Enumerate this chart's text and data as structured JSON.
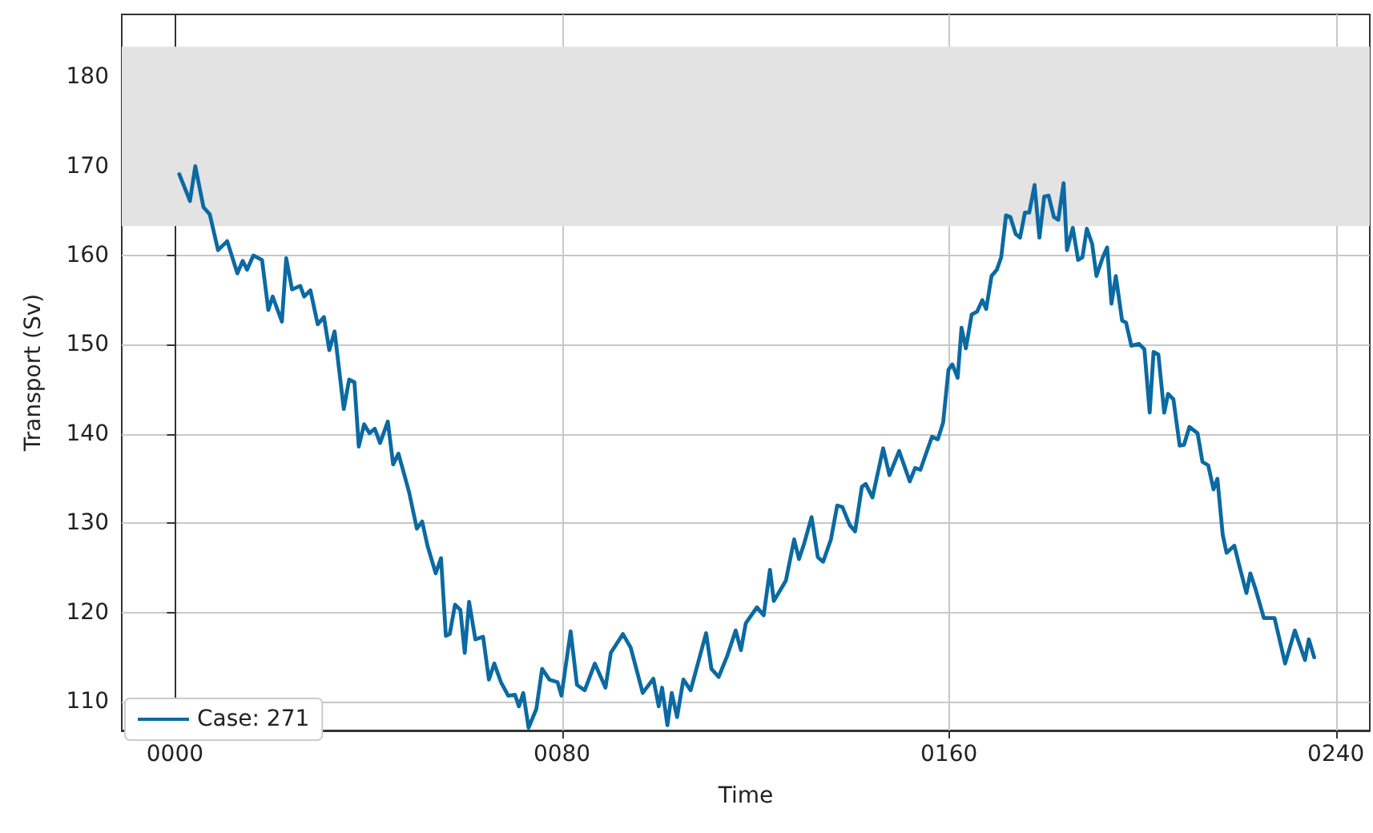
{
  "chart_data": {
    "type": "line",
    "xlabel": "Time",
    "ylabel": "Transport (Sv)",
    "xlim": [
      -11,
      247
    ],
    "ylim": [
      106.8,
      187
    ],
    "xticks": [
      {
        "value": 0,
        "label": "0000"
      },
      {
        "value": 80,
        "label": "0080"
      },
      {
        "value": 160,
        "label": "0160"
      },
      {
        "value": 240,
        "label": "0240"
      }
    ],
    "yticks": [
      110,
      120,
      130,
      140,
      150,
      160,
      170,
      180
    ],
    "grid": true,
    "legend": "bottom left",
    "line_style": "solid",
    "marker": "none",
    "bands": [
      {
        "axis": "y",
        "from": 163.3,
        "to": 183.4,
        "color": "#e3e3e3"
      }
    ],
    "series": [
      {
        "name": "Case: 271",
        "color": "#0b6aa2",
        "x": [
          0.9,
          3.1,
          4.2,
          5.9,
          7.2,
          8.9,
          10.8,
          12.9,
          14,
          14.9,
          16.2,
          18,
          19.3,
          20.2,
          22.1,
          23,
          24.2,
          25.9,
          26.7,
          28,
          29.5,
          30.8,
          31.9,
          33,
          34.9,
          36,
          37.1,
          38,
          39.1,
          40.2,
          41.3,
          42.4,
          44,
          45.1,
          46.2,
          48.4,
          50,
          51.1,
          52.2,
          53.9,
          55,
          56,
          56.8,
          57.9,
          59,
          59.9,
          60.8,
          62.1,
          63.7,
          64.9,
          66,
          67.4,
          68.9,
          70.3,
          71.1,
          72,
          73.1,
          74.7,
          75.9,
          77.4,
          79.1,
          79.9,
          81.8,
          83.1,
          84.7,
          86.8,
          89,
          90.1,
          92.6,
          94.2,
          96.7,
          98.9,
          100,
          100.7,
          101.8,
          102.7,
          103.8,
          105.1,
          106.6,
          109.8,
          110.9,
          112.4,
          114.2,
          115.9,
          117,
          118,
          120.3,
          121.7,
          123,
          123.8,
          126.3,
          128,
          129,
          130.1,
          131.6,
          132.9,
          134,
          135.6,
          136.9,
          138,
          139.5,
          140.6,
          142,
          142.8,
          144.2,
          146.4,
          147.7,
          149.7,
          151.9,
          153,
          154.1,
          155.2,
          156.5,
          157.7,
          158.8,
          159.9,
          160.7,
          161.8,
          162.6,
          163.5,
          164.7,
          165.8,
          166.9,
          167.7,
          168.8,
          169.9,
          170.8,
          171.8,
          172.7,
          173.8,
          174.7,
          175.7,
          176.6,
          177.7,
          178.7,
          179.7,
          180.6,
          181.7,
          182.6,
          183.7,
          184.4,
          185.6,
          186.7,
          187.6,
          188.5,
          189.6,
          190.5,
          191.8,
          192.7,
          193.6,
          194.5,
          195.8,
          196.6,
          197.7,
          199.3,
          200.4,
          201.5,
          202.3,
          203.3,
          204.5,
          205.3,
          206.4,
          207.7,
          208.6,
          209.7,
          211.4,
          212.4,
          213.6,
          214.7,
          215.5,
          216.6,
          217.4,
          219,
          220.1,
          221.5,
          222.3,
          223.4,
          225.1,
          227.3,
          229.5,
          231.5,
          233.6,
          234.4,
          235.5
        ],
        "values": [
          169.1,
          166.1,
          170,
          165.4,
          164.6,
          160.6,
          161.6,
          158,
          159.4,
          158.4,
          160,
          159.5,
          153.9,
          155.4,
          152.6,
          159.7,
          156.2,
          156.6,
          155.4,
          156.1,
          152.3,
          153.1,
          149.4,
          151.5,
          142.8,
          146.1,
          145.8,
          138.6,
          141.1,
          140.1,
          140.6,
          139,
          141.4,
          136.6,
          137.8,
          133.5,
          129.4,
          130.2,
          127.5,
          124.4,
          126.1,
          117.4,
          117.6,
          120.9,
          120.3,
          115.5,
          121.2,
          117,
          117.3,
          112.5,
          114.3,
          112.2,
          110.7,
          110.8,
          109.5,
          111,
          107.1,
          109.2,
          113.7,
          112.5,
          112.2,
          110.7,
          117.9,
          111.9,
          111.3,
          114.3,
          111.6,
          115.5,
          117.6,
          116.1,
          111,
          112.6,
          109.5,
          111.6,
          107.4,
          111,
          108.3,
          112.5,
          111.3,
          117.7,
          113.7,
          112.8,
          115.2,
          118,
          115.8,
          118.8,
          120.6,
          119.7,
          124.8,
          121.3,
          123.6,
          128.2,
          126,
          127.8,
          130.7,
          126.2,
          125.7,
          128.2,
          132,
          131.8,
          129.8,
          129.1,
          134.1,
          134.4,
          132.9,
          138.4,
          135.4,
          138.1,
          134.7,
          136.2,
          136,
          137.7,
          139.7,
          139.4,
          141.3,
          147.2,
          147.8,
          146.3,
          151.9,
          149.6,
          153.4,
          153.7,
          155,
          154,
          157.7,
          158.4,
          159.8,
          164.5,
          164.3,
          162.4,
          162,
          164.8,
          164.8,
          167.9,
          162,
          166.6,
          166.7,
          164.3,
          164,
          168.1,
          160.6,
          163.1,
          159.5,
          159.8,
          163,
          161.3,
          157.7,
          159.8,
          160.9,
          154.6,
          157.7,
          152.7,
          152.5,
          149.9,
          150.1,
          149.5,
          142.4,
          149.2,
          148.9,
          142.4,
          144.5,
          143.9,
          138.7,
          138.8,
          140.8,
          140.1,
          136.9,
          136.5,
          133.8,
          135,
          128.7,
          126.7,
          127.5,
          125.1,
          122.2,
          124.4,
          122.6,
          119.4,
          119.4,
          114.3,
          118,
          114.7,
          117,
          115
        ]
      }
    ]
  }
}
